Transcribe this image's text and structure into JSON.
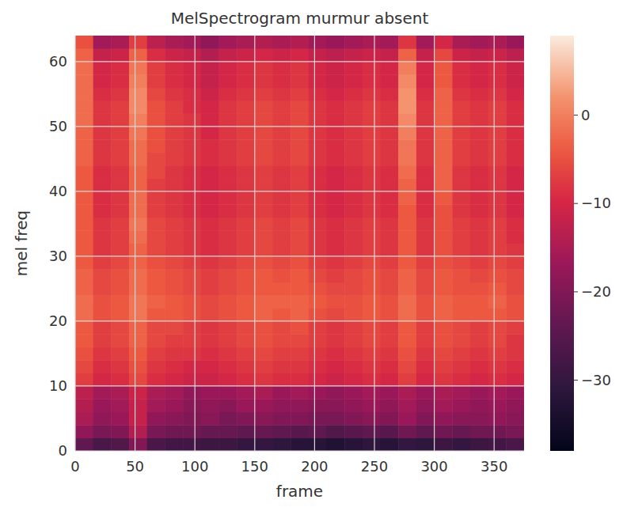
{
  "chart_data": {
    "type": "heatmap",
    "title": "MelSpectrogram murmur absent",
    "x_label": "frame",
    "y_label": "mel freq",
    "xlim": [
      0,
      375
    ],
    "ylim": [
      0,
      64
    ],
    "xticks": [
      0,
      50,
      100,
      150,
      200,
      250,
      300,
      350
    ],
    "yticks": [
      0,
      10,
      20,
      30,
      40,
      50,
      60
    ],
    "grid": true,
    "colorbar_range": [
      -38,
      9
    ],
    "colorbar_ticks": [
      0,
      -10,
      -20,
      -30
    ],
    "cells": [
      [
        -24,
        -27,
        -26,
        -20,
        -27,
        -28,
        -28,
        -29,
        -29,
        -30,
        -30,
        -31,
        -32,
        -32,
        -33,
        -32,
        -31,
        -32,
        -30,
        -31,
        -29,
        -30,
        -29,
        -28,
        -27
      ],
      [
        -18,
        -21,
        -20,
        -14,
        -21,
        -22,
        -22,
        -23,
        -23,
        -24,
        -23,
        -24,
        -25,
        -24,
        -26,
        -25,
        -24,
        -25,
        -22,
        -24,
        -22,
        -23,
        -22,
        -22,
        -21
      ],
      [
        -15,
        -18,
        -17,
        -12,
        -18,
        -19,
        -20,
        -19,
        -21,
        -20,
        -19,
        -20,
        -20,
        -21,
        -21,
        -20,
        -19,
        -20,
        -17,
        -20,
        -18,
        -19,
        -19,
        -18,
        -19
      ],
      [
        -14,
        -17,
        -16,
        -12,
        -16,
        -17,
        -19,
        -18,
        -19,
        -17,
        -17,
        -18,
        -18,
        -19,
        -19,
        -18,
        -17,
        -18,
        -16,
        -18,
        -16,
        -17,
        -18,
        -17,
        -18
      ],
      [
        -13,
        -16,
        -15,
        -11,
        -15,
        -16,
        -18,
        -17,
        -17,
        -16,
        -15,
        -17,
        -16,
        -17,
        -18,
        -17,
        -16,
        -17,
        -15,
        -17,
        -15,
        -16,
        -17,
        -16,
        -17
      ],
      [
        -7,
        -10,
        -9,
        -6,
        -9,
        -10,
        -11,
        -11,
        -10,
        -9,
        -8,
        -9,
        -9,
        -10,
        -11,
        -10,
        -9,
        -10,
        -7,
        -10,
        -8,
        -9,
        -10,
        -9,
        -10
      ],
      [
        -6,
        -9,
        -8,
        -5,
        -8,
        -9,
        -10,
        -10,
        -9,
        -8,
        -7,
        -8,
        -8,
        -9,
        -10,
        -9,
        -8,
        -9,
        -6,
        -9,
        -7,
        -8,
        -9,
        -8,
        -9
      ],
      [
        -5,
        -8,
        -7,
        -4,
        -7,
        -8,
        -8,
        -9,
        -8,
        -7,
        -6,
        -7,
        -7,
        -8,
        -9,
        -8,
        -7,
        -8,
        -5,
        -8,
        -6,
        -7,
        -8,
        -7,
        -8
      ],
      [
        -4,
        -7,
        -6,
        -3,
        -6,
        -7,
        -7,
        -8,
        -7,
        -6,
        -5,
        -6,
        -6,
        -7,
        -8,
        -7,
        -6,
        -7,
        -4,
        -7,
        -5,
        -6,
        -7,
        -6,
        -8
      ],
      [
        -4,
        -7,
        -6,
        -3,
        -6,
        -6,
        -7,
        -8,
        -7,
        -6,
        -5,
        -6,
        -5,
        -7,
        -8,
        -7,
        -6,
        -7,
        -4,
        -7,
        -5,
        -6,
        -7,
        -6,
        -7
      ],
      [
        -2,
        -5,
        -4,
        -1,
        -4,
        -4,
        -5,
        -6,
        -5,
        -4,
        -3,
        -4,
        -3,
        -5,
        -6,
        -5,
        -4,
        -5,
        -2,
        -5,
        -3,
        -4,
        -4,
        -4,
        -5
      ],
      [
        -2,
        -5,
        -4,
        -1,
        -3,
        -4,
        -5,
        -6,
        -5,
        -4,
        -3,
        -3,
        -3,
        -4,
        -5,
        -5,
        -4,
        -5,
        -2,
        -5,
        -3,
        -4,
        -4,
        -3,
        -5
      ],
      [
        -3,
        -6,
        -5,
        -2,
        -4,
        -5,
        -6,
        -7,
        -6,
        -5,
        -4,
        -4,
        -4,
        -5,
        -6,
        -6,
        -5,
        -6,
        -3,
        -6,
        -4,
        -5,
        -5,
        -4,
        -6
      ],
      [
        -3,
        -6,
        -5,
        -2,
        -4,
        -5,
        -6,
        -7,
        -6,
        -5,
        -4,
        -5,
        -4,
        -6,
        -7,
        -6,
        -5,
        -6,
        -3,
        -6,
        -4,
        -5,
        -6,
        -5,
        -6
      ],
      [
        -4,
        -7,
        -6,
        -3,
        -5,
        -6,
        -7,
        -8,
        -7,
        -6,
        -5,
        -6,
        -5,
        -7,
        -8,
        -7,
        -6,
        -7,
        -4,
        -7,
        -5,
        -6,
        -7,
        -6,
        -7
      ],
      [
        -4,
        -8,
        -7,
        -3,
        -6,
        -7,
        -8,
        -9,
        -8,
        -7,
        -6,
        -7,
        -6,
        -8,
        -9,
        -8,
        -7,
        -8,
        -4,
        -8,
        -5,
        -7,
        -8,
        -7,
        -8
      ],
      [
        -4,
        -8,
        -7,
        -2,
        -6,
        -7,
        -8,
        -9,
        -8,
        -7,
        -6,
        -7,
        -6,
        -8,
        -9,
        -8,
        -7,
        -8,
        -4,
        -8,
        -5,
        -7,
        -8,
        -7,
        -9
      ],
      [
        -4,
        -8,
        -7,
        -1,
        -6,
        -7,
        -8,
        -9,
        -8,
        -7,
        -6,
        -7,
        -6,
        -8,
        -9,
        -8,
        -7,
        -8,
        -4,
        -8,
        -5,
        -7,
        -8,
        -7,
        -9
      ],
      [
        -4,
        -9,
        -8,
        -2,
        -7,
        -8,
        -9,
        -10,
        -9,
        -8,
        -7,
        -8,
        -7,
        -9,
        -10,
        -9,
        -8,
        -9,
        -4,
        -9,
        -5,
        -8,
        -9,
        -8,
        -10
      ],
      [
        -4,
        -9,
        -8,
        -2,
        -7,
        -8,
        -9,
        -10,
        -9,
        -8,
        -7,
        -8,
        -7,
        -9,
        -10,
        -9,
        -8,
        -9,
        -3,
        -9,
        -4,
        -8,
        -9,
        -8,
        -10
      ],
      [
        -4,
        -9,
        -8,
        -3,
        -7,
        -8,
        -9,
        -10,
        -9,
        -8,
        -7,
        -8,
        -7,
        -9,
        -10,
        -9,
        -8,
        -9,
        -3,
        -9,
        -3,
        -8,
        -9,
        -8,
        -10
      ],
      [
        -4,
        -9,
        -8,
        -3,
        -6,
        -8,
        -9,
        -10,
        -9,
        -8,
        -7,
        -8,
        -7,
        -9,
        -10,
        -9,
        -8,
        -9,
        -2,
        -9,
        -3,
        -8,
        -9,
        -8,
        -10
      ],
      [
        -3,
        -8,
        -7,
        -2,
        -6,
        -7,
        -8,
        -9,
        -8,
        -7,
        -6,
        -7,
        -6,
        -8,
        -9,
        -8,
        -7,
        -8,
        -1,
        -8,
        -3,
        -7,
        -8,
        -7,
        -9
      ],
      [
        -3,
        -8,
        -7,
        -2,
        -5,
        -7,
        -8,
        -9,
        -8,
        -7,
        -6,
        -7,
        -6,
        -8,
        -9,
        -8,
        -7,
        -8,
        -1,
        -8,
        -3,
        -7,
        -8,
        -7,
        -9
      ],
      [
        -3,
        -8,
        -7,
        -1,
        -5,
        -7,
        -8,
        -10,
        -8,
        -7,
        -6,
        -7,
        -6,
        -8,
        -9,
        -8,
        -7,
        -8,
        0,
        -8,
        -3,
        -7,
        -8,
        -7,
        -9
      ],
      [
        -2,
        -8,
        -7,
        0,
        -5,
        -7,
        -8,
        -10,
        -8,
        -7,
        -6,
        -7,
        -6,
        -8,
        -9,
        -8,
        -7,
        -8,
        1,
        -8,
        -3,
        -7,
        -8,
        -7,
        -9
      ],
      [
        -2,
        -8,
        -7,
        1,
        -5,
        -7,
        -9,
        -10,
        -8,
        -7,
        -6,
        -7,
        -6,
        -8,
        -9,
        -8,
        -7,
        -8,
        2,
        -8,
        -3,
        -7,
        -8,
        -7,
        -9
      ],
      [
        -2,
        -9,
        -8,
        1,
        -6,
        -8,
        -9,
        -11,
        -9,
        -8,
        -7,
        -8,
        -7,
        -9,
        -10,
        -9,
        -8,
        -9,
        2,
        -9,
        -3,
        -8,
        -9,
        -8,
        -10
      ],
      [
        -2,
        -10,
        -9,
        0,
        -7,
        -9,
        -10,
        -12,
        -10,
        -9,
        -8,
        -9,
        -8,
        -10,
        -11,
        -10,
        -9,
        -10,
        1,
        -10,
        -4,
        -9,
        -10,
        -9,
        -11
      ],
      [
        -2,
        -10,
        -9,
        -1,
        -7,
        -9,
        -10,
        -12,
        -10,
        -9,
        -8,
        -9,
        -8,
        -10,
        -11,
        -10,
        -9,
        -10,
        0,
        -10,
        -4,
        -9,
        -10,
        -9,
        -11
      ],
      [
        -3,
        -12,
        -11,
        -3,
        -9,
        -11,
        -12,
        -14,
        -12,
        -11,
        -10,
        -11,
        -10,
        -12,
        -13,
        -12,
        -11,
        -12,
        -3,
        -12,
        -6,
        -11,
        -12,
        -11,
        -13
      ],
      [
        -5,
        -16,
        -15,
        -7,
        -13,
        -15,
        -16,
        -18,
        -16,
        -15,
        -14,
        -15,
        -14,
        -16,
        -17,
        -16,
        -15,
        -16,
        -8,
        -16,
        -10,
        -15,
        -16,
        -15,
        -17
      ]
    ]
  }
}
